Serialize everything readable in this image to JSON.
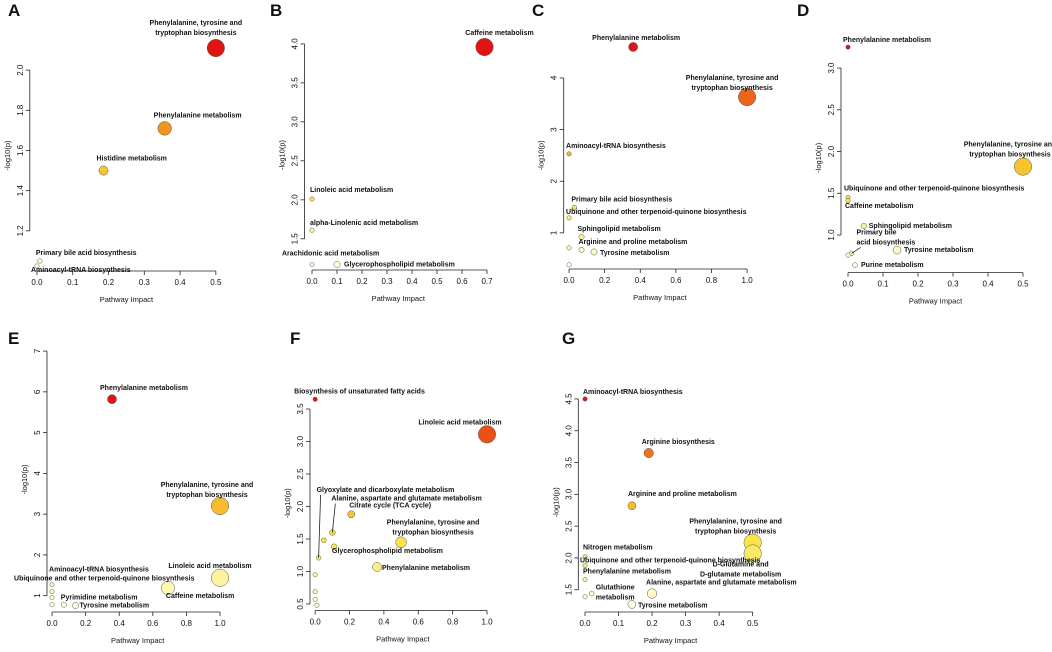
{
  "chart_data": [
    {
      "type": "scatter",
      "panel": "A",
      "x_label": "Pathway Impact",
      "y_label": "-log10(p)",
      "x": [
        0.5,
        0.357,
        0.186,
        0.008,
        0
      ],
      "values": [
        2.11,
        1.71,
        1.5,
        1.05,
        1.025
      ],
      "point_labels": [
        "Phenylalanine, tyrosine and\ntryptophan biosynthesis",
        "Phenylalanine metabolism",
        "Histidine metabolism",
        "Primary bile acid biosynthesis",
        "Aminoacyl-tRNA biosynthesis"
      ],
      "xlim": [
        -0.02,
        0.52
      ],
      "ylim": [
        1.0,
        2.15
      ],
      "xticks": [
        {
          "value": 0,
          "label": "0.0"
        },
        0.1,
        0.2,
        0.3,
        0.4,
        0.5
      ],
      "yticks": [
        1.2,
        1.4,
        1.6,
        1.8,
        {
          "value": 2,
          "label": "2.0"
        }
      ]
    },
    {
      "type": "scatter",
      "panel": "B",
      "x_label": "Pathway Impact",
      "y_label": "-log10(p)",
      "x": [
        0.69,
        0,
        0,
        0,
        0.1
      ],
      "values": [
        3.96,
        2.01,
        1.61,
        1.17,
        1.17
      ],
      "point_labels": [
        "Caffeine metabolism",
        "Linoleic acid metabolism",
        "alpha-Linolenic acid metabolism",
        "Arachidonic acid metabolism",
        "Glycerophospholipid metabolism"
      ],
      "xlim": [
        -0.03,
        0.72
      ],
      "ylim": [
        1.1,
        4.05
      ],
      "xticks": [
        {
          "value": 0,
          "label": "0.0"
        },
        0.1,
        0.2,
        0.3,
        0.4,
        0.5,
        0.6,
        0.7
      ],
      "yticks": [
        1.5,
        {
          "value": 2,
          "label": "2.0"
        },
        2.5,
        {
          "value": 3,
          "label": "3.0"
        },
        3.5,
        {
          "value": 4,
          "label": "4.0"
        }
      ]
    },
    {
      "type": "scatter",
      "panel": "C",
      "x_label": "Pathway Impact",
      "y_label": "-log10(p)",
      "x": [
        0.36,
        1,
        0,
        0.03,
        0,
        0.07,
        0.07,
        0.14,
        0,
        0
      ],
      "values": [
        4.6,
        3.63,
        2.53,
        1.49,
        1.29,
        0.92,
        0.67,
        0.63,
        0.71,
        0.38
      ],
      "point_labels": [
        "Phenylalanine metabolism",
        "Phenylalanine, tyrosine and\ntryptophan biosynthesis",
        "Aminoacyl-tRNA biosynthesis",
        "Primary bile acid biosynthesis",
        "Ubiquinone and other terpenoid-quinone biosynthesis",
        "Sphingolipid metabolism",
        "Arginine and proline metabolism",
        "Tyrosine metabolism",
        null,
        null
      ],
      "xlim": [
        -0.03,
        1.05
      ],
      "ylim": [
        0.3,
        4.7
      ],
      "xticks": [
        {
          "value": 0,
          "label": "0.0"
        },
        0.2,
        0.4,
        0.6,
        0.8,
        {
          "value": 1,
          "label": "1.0"
        }
      ],
      "yticks": [
        1,
        2,
        3,
        4
      ]
    },
    {
      "type": "scatter",
      "panel": "D",
      "x_label": "Pathway Impact",
      "y_label": "-log10(p)",
      "x": [
        0,
        0.5,
        0,
        0,
        0.045,
        0.01,
        0.14,
        0.02,
        0
      ],
      "values": [
        3.25,
        1.82,
        1.45,
        1.41,
        1.11,
        0.78,
        0.82,
        0.64,
        0.76
      ],
      "point_labels": [
        "Phenylalanine metabolism",
        "Phenylalanine, tyrosine and\ntryptophan biosynthesis",
        "Ubiquinone and other terpenoid-quinone biosynthesis",
        "Caffeine metabolism",
        "Sphingolipid metabolism",
        "Primary bile\nacid biosynthesis",
        "Tyrosine metabolism",
        "Purine metabolism",
        null
      ],
      "xlim": [
        -0.02,
        0.52
      ],
      "ylim": [
        0.55,
        3.3
      ],
      "xticks": [
        {
          "value": 0,
          "label": "0.0"
        },
        0.1,
        0.2,
        0.3,
        0.4,
        0.5
      ],
      "yticks": [
        {
          "value": 1,
          "label": "1.0"
        },
        1.5,
        {
          "value": 2,
          "label": "2.0"
        },
        2.5,
        {
          "value": 3,
          "label": "3.0"
        }
      ]
    },
    {
      "type": "scatter",
      "panel": "E",
      "x_label": "Pathway Impact",
      "y_label": "-log10(p)",
      "x": [
        0.357,
        1,
        1,
        0.69,
        0,
        0,
        0,
        0,
        0.07,
        0.14
      ],
      "values": [
        5.82,
        3.2,
        1.44,
        1.19,
        1.27,
        1.1,
        0.95,
        0.78,
        0.78,
        0.76
      ],
      "point_labels": [
        "Phenylalanine metabolism",
        "Phenylalanine, tyrosine and\ntryptophan biosynthesis",
        "Linoleic acid metabolism",
        "Caffeine metabolism",
        "Aminoacyl-tRNA biosynthesis",
        "Ubiquinone and other terpenoid-quinone biosynthesis",
        null,
        null,
        "Pyrimidine metabolism",
        "Tyrosine metabolism"
      ],
      "xlim": [
        -0.03,
        1.05
      ],
      "ylim": [
        0.6,
        7.1
      ],
      "xticks": [
        {
          "value": 0,
          "label": "0.0"
        },
        0.2,
        0.4,
        0.6,
        0.8,
        {
          "value": 1,
          "label": "1.0"
        }
      ],
      "yticks": [
        1,
        2,
        3,
        4,
        5,
        6,
        7
      ]
    },
    {
      "type": "scatter",
      "panel": "F",
      "x_label": "Pathway Impact",
      "y_label": "-log10(p)",
      "x": [
        0,
        1,
        0.02,
        0.1,
        0.21,
        0.11,
        0.5,
        0.36,
        0.05,
        0,
        0,
        0,
        0.01
      ],
      "values": [
        3.65,
        3.11,
        1.21,
        1.6,
        1.88,
        1.38,
        1.45,
        1.07,
        1.48,
        0.95,
        0.69,
        0.57,
        0.48
      ],
      "point_labels": [
        "Biosynthesis of unsaturated fatty acids",
        "Linoleic acid metabolism",
        "Glyoxylate and dicarboxylate metabolism",
        "Alanine, aspartate and glutamate metabolism",
        "Citrate cycle (TCA cycle)",
        "Glycerophospholipid metabolism",
        "Phenylalanine, tyrosine and\ntryptophan biosynthesis",
        "Phenylalanine metabolism",
        null,
        null,
        null,
        null,
        null
      ],
      "xlim": [
        -0.03,
        1.05
      ],
      "ylim": [
        0.4,
        3.7
      ],
      "xticks": [
        {
          "value": 0,
          "label": "0.0"
        },
        0.2,
        0.4,
        0.6,
        0.8,
        {
          "value": 1,
          "label": "1.0"
        }
      ],
      "yticks": [
        0.5,
        {
          "value": 1,
          "label": "1.0"
        },
        1.5,
        {
          "value": 2,
          "label": "2.0"
        },
        2.5,
        {
          "value": 3,
          "label": "3.0"
        },
        3.5
      ]
    },
    {
      "type": "scatter",
      "panel": "G",
      "x_label": "Pathway Impact",
      "y_label": "-log10(p)",
      "x": [
        0,
        0.19,
        0.14,
        0.5,
        0.5,
        0,
        0,
        0,
        0.02,
        0.2,
        0.14,
        0
      ],
      "values": [
        4.5,
        3.65,
        2.82,
        2.24,
        2.07,
        2.02,
        1.88,
        1.66,
        1.44,
        1.44,
        1.27,
        1.39
      ],
      "point_labels": [
        "Aminoacyl-tRNA biosynthesis",
        "Arginine biosynthesis",
        "Arginine and proline metabolism",
        "Phenylalanine, tyrosine and\ntryptophan biosynthesis",
        "D-Glutamine and\nD-glutamate metabolism",
        "Nitrogen metabolism",
        "Ubiquinone and other terpenoid-quinone biosynthesis",
        "Phenylalanine metabolism",
        "Glutathione\nmetabolism",
        "Alanine, aspartate and glutamate metabolism",
        "Tyrosine metabolism",
        null
      ],
      "xlim": [
        -0.02,
        0.53
      ],
      "ylim": [
        1.15,
        4.6
      ],
      "xticks": [
        {
          "value": 0,
          "label": "0.0"
        },
        0.1,
        0.2,
        0.3,
        0.4,
        0.5
      ],
      "yticks": [
        1.5,
        {
          "value": 2,
          "label": "2.0"
        },
        2.5,
        {
          "value": 3,
          "label": "3.0"
        },
        3.5,
        {
          "value": 4,
          "label": "4.0"
        },
        4.5
      ]
    }
  ]
}
